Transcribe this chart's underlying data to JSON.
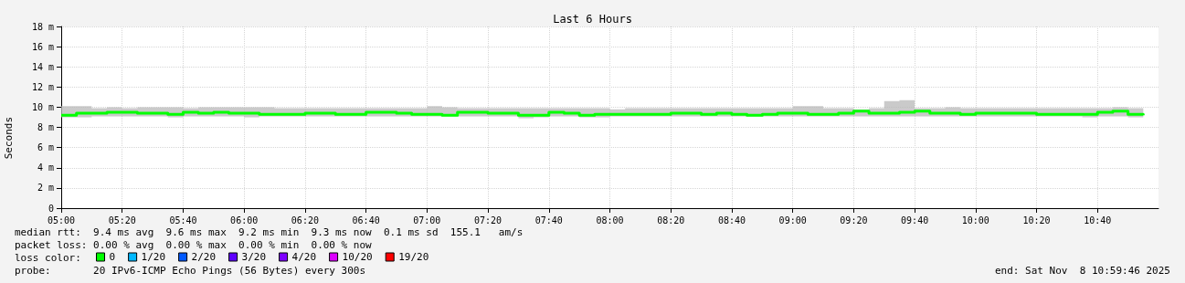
{
  "chart_data": {
    "type": "step",
    "title": "Last 6 Hours",
    "ylabel": "Seconds",
    "legend_title": "loss color:",
    "legend": "bottom",
    "grid": true,
    "marker": "none",
    "x": [
      "2025-11-08T05:00",
      "2025-11-08T05:05",
      "2025-11-08T05:10",
      "2025-11-08T05:15",
      "2025-11-08T05:20",
      "2025-11-08T05:25",
      "2025-11-08T05:30",
      "2025-11-08T05:35",
      "2025-11-08T05:40",
      "2025-11-08T05:45",
      "2025-11-08T05:50",
      "2025-11-08T05:55",
      "2025-11-08T06:00",
      "2025-11-08T06:05",
      "2025-11-08T06:10",
      "2025-11-08T06:15",
      "2025-11-08T06:20",
      "2025-11-08T06:25",
      "2025-11-08T06:30",
      "2025-11-08T06:35",
      "2025-11-08T06:40",
      "2025-11-08T06:45",
      "2025-11-08T06:50",
      "2025-11-08T06:55",
      "2025-11-08T07:00",
      "2025-11-08T07:05",
      "2025-11-08T07:10",
      "2025-11-08T07:15",
      "2025-11-08T07:20",
      "2025-11-08T07:25",
      "2025-11-08T07:30",
      "2025-11-08T07:35",
      "2025-11-08T07:40",
      "2025-11-08T07:45",
      "2025-11-08T07:50",
      "2025-11-08T07:55",
      "2025-11-08T08:00",
      "2025-11-08T08:05",
      "2025-11-08T08:10",
      "2025-11-08T08:15",
      "2025-11-08T08:20",
      "2025-11-08T08:25",
      "2025-11-08T08:30",
      "2025-11-08T08:35",
      "2025-11-08T08:40",
      "2025-11-08T08:45",
      "2025-11-08T08:50",
      "2025-11-08T08:55",
      "2025-11-08T09:00",
      "2025-11-08T09:05",
      "2025-11-08T09:10",
      "2025-11-08T09:15",
      "2025-11-08T09:20",
      "2025-11-08T09:25",
      "2025-11-08T09:30",
      "2025-11-08T09:35",
      "2025-11-08T09:40",
      "2025-11-08T09:45",
      "2025-11-08T09:50",
      "2025-11-08T09:55",
      "2025-11-08T10:00",
      "2025-11-08T10:05",
      "2025-11-08T10:10",
      "2025-11-08T10:15",
      "2025-11-08T10:20",
      "2025-11-08T10:25",
      "2025-11-08T10:30",
      "2025-11-08T10:35",
      "2025-11-08T10:40",
      "2025-11-08T10:45",
      "2025-11-08T10:50",
      "2025-11-08T10:55"
    ],
    "xlim": [
      "2025-11-08T05:00",
      "2025-11-08T11:00"
    ],
    "xticks": [
      {
        "value": "2025-11-08T05:00",
        "label": "05:00"
      },
      {
        "value": "2025-11-08T05:20",
        "label": "05:20"
      },
      {
        "value": "2025-11-08T05:40",
        "label": "05:40"
      },
      {
        "value": "2025-11-08T06:00",
        "label": "06:00"
      },
      {
        "value": "2025-11-08T06:20",
        "label": "06:20"
      },
      {
        "value": "2025-11-08T06:40",
        "label": "06:40"
      },
      {
        "value": "2025-11-08T07:00",
        "label": "07:00"
      },
      {
        "value": "2025-11-08T07:20",
        "label": "07:20"
      },
      {
        "value": "2025-11-08T07:40",
        "label": "07:40"
      },
      {
        "value": "2025-11-08T08:00",
        "label": "08:00"
      },
      {
        "value": "2025-11-08T08:20",
        "label": "08:20"
      },
      {
        "value": "2025-11-08T08:40",
        "label": "08:40"
      },
      {
        "value": "2025-11-08T09:00",
        "label": "09:00"
      },
      {
        "value": "2025-11-08T09:20",
        "label": "09:20"
      },
      {
        "value": "2025-11-08T09:40",
        "label": "09:40"
      },
      {
        "value": "2025-11-08T10:00",
        "label": "10:00"
      },
      {
        "value": "2025-11-08T10:20",
        "label": "10:20"
      },
      {
        "value": "2025-11-08T10:40",
        "label": "10:40"
      }
    ],
    "ylim": [
      0,
      18
    ],
    "yticks": [
      0,
      {
        "value": 2,
        "label": "2 m"
      },
      {
        "value": 4,
        "label": "4 m"
      },
      {
        "value": 6,
        "label": "6 m"
      },
      {
        "value": 8,
        "label": "8 m"
      },
      {
        "value": 10,
        "label": "10 m"
      },
      {
        "value": 12,
        "label": "12 m"
      },
      {
        "value": 14,
        "label": "14 m"
      },
      {
        "value": 16,
        "label": "16 m"
      },
      {
        "value": 18,
        "label": "18 m"
      }
    ],
    "series": [
      {
        "name": "0",
        "color": "#00ff00",
        "values": [
          9.2,
          9.4,
          9.4,
          9.5,
          9.5,
          9.4,
          9.4,
          9.3,
          9.5,
          9.4,
          9.5,
          9.4,
          9.4,
          9.3,
          9.3,
          9.3,
          9.4,
          9.4,
          9.3,
          9.3,
          9.5,
          9.5,
          9.4,
          9.3,
          9.3,
          9.2,
          9.5,
          9.5,
          9.4,
          9.4,
          9.2,
          9.2,
          9.5,
          9.4,
          9.2,
          9.3,
          9.3,
          9.3,
          9.3,
          9.3,
          9.4,
          9.4,
          9.3,
          9.4,
          9.3,
          9.2,
          9.3,
          9.4,
          9.4,
          9.3,
          9.3,
          9.4,
          9.6,
          9.4,
          9.4,
          9.5,
          9.6,
          9.4,
          9.4,
          9.3,
          9.4,
          9.4,
          9.4,
          9.4,
          9.3,
          9.3,
          9.3,
          9.3,
          9.5,
          9.6,
          9.3,
          9.2
        ],
        "lower": [
          9.0,
          9.0,
          9.1,
          9.1,
          9.1,
          9.1,
          9.1,
          9.0,
          9.1,
          9.1,
          9.1,
          9.1,
          9.0,
          9.1,
          9.1,
          9.1,
          9.1,
          9.1,
          9.1,
          9.1,
          9.1,
          9.1,
          9.1,
          9.1,
          9.1,
          9.1,
          9.1,
          9.1,
          9.1,
          9.1,
          8.9,
          9.0,
          9.1,
          9.1,
          9.0,
          9.0,
          9.1,
          9.1,
          9.1,
          9.1,
          9.1,
          9.1,
          9.1,
          9.1,
          9.1,
          9.1,
          9.1,
          9.1,
          9.1,
          9.1,
          9.1,
          9.1,
          9.1,
          9.1,
          9.1,
          9.1,
          9.1,
          9.1,
          9.1,
          9.1,
          9.1,
          9.1,
          9.1,
          9.1,
          9.1,
          9.1,
          9.1,
          9.0,
          9.1,
          9.1,
          9.0,
          9.0
        ],
        "upper": [
          10.1,
          10.1,
          9.9,
          10.0,
          9.9,
          10.0,
          10.0,
          10.0,
          9.9,
          10.0,
          10.0,
          10.0,
          10.0,
          10.0,
          9.9,
          9.9,
          9.9,
          9.9,
          9.9,
          9.9,
          9.9,
          9.9,
          9.9,
          9.9,
          10.1,
          10.0,
          9.9,
          9.9,
          9.9,
          9.9,
          9.9,
          9.9,
          9.9,
          9.9,
          9.9,
          9.9,
          9.8,
          9.9,
          9.9,
          9.9,
          9.9,
          9.9,
          9.9,
          9.9,
          9.9,
          9.9,
          9.9,
          9.9,
          10.1,
          10.1,
          9.9,
          9.9,
          9.8,
          9.9,
          10.6,
          10.7,
          9.9,
          9.9,
          10.0,
          9.9,
          9.9,
          9.9,
          9.9,
          9.9,
          9.9,
          9.9,
          9.9,
          9.9,
          9.9,
          10.0,
          9.9,
          9.9
        ]
      },
      {
        "name": "1/20",
        "color": "#00b8ff",
        "values": [
          null,
          null,
          null,
          null,
          null,
          null,
          null,
          null,
          null,
          null,
          null,
          null,
          null,
          null,
          null,
          null,
          null,
          null,
          null,
          null,
          null,
          null,
          null,
          null,
          null,
          null,
          null,
          null,
          null,
          null,
          null,
          null,
          null,
          null,
          null,
          null,
          null,
          null,
          null,
          null,
          null,
          null,
          null,
          null,
          null,
          null,
          null,
          null,
          null,
          null,
          null,
          null,
          null,
          null,
          null,
          null,
          null,
          null,
          null,
          null,
          null,
          null,
          null,
          null,
          null,
          null,
          null,
          null,
          null,
          null,
          null,
          null
        ]
      },
      {
        "name": "2/20",
        "color": "#0059ff",
        "values": [
          null,
          null,
          null,
          null,
          null,
          null,
          null,
          null,
          null,
          null,
          null,
          null,
          null,
          null,
          null,
          null,
          null,
          null,
          null,
          null,
          null,
          null,
          null,
          null,
          null,
          null,
          null,
          null,
          null,
          null,
          null,
          null,
          null,
          null,
          null,
          null,
          null,
          null,
          null,
          null,
          null,
          null,
          null,
          null,
          null,
          null,
          null,
          null,
          null,
          null,
          null,
          null,
          null,
          null,
          null,
          null,
          null,
          null,
          null,
          null,
          null,
          null,
          null,
          null,
          null,
          null,
          null,
          null,
          null,
          null,
          null,
          null
        ]
      },
      {
        "name": "3/20",
        "color": "#5e00ff",
        "values": [
          null,
          null,
          null,
          null,
          null,
          null,
          null,
          null,
          null,
          null,
          null,
          null,
          null,
          null,
          null,
          null,
          null,
          null,
          null,
          null,
          null,
          null,
          null,
          null,
          null,
          null,
          null,
          null,
          null,
          null,
          null,
          null,
          null,
          null,
          null,
          null,
          null,
          null,
          null,
          null,
          null,
          null,
          null,
          null,
          null,
          null,
          null,
          null,
          null,
          null,
          null,
          null,
          null,
          null,
          null,
          null,
          null,
          null,
          null,
          null,
          null,
          null,
          null,
          null,
          null,
          null,
          null,
          null,
          null,
          null,
          null,
          null
        ]
      },
      {
        "name": "4/20",
        "color": "#7e00ff",
        "values": [
          null,
          null,
          null,
          null,
          null,
          null,
          null,
          null,
          null,
          null,
          null,
          null,
          null,
          null,
          null,
          null,
          null,
          null,
          null,
          null,
          null,
          null,
          null,
          null,
          null,
          null,
          null,
          null,
          null,
          null,
          null,
          null,
          null,
          null,
          null,
          null,
          null,
          null,
          null,
          null,
          null,
          null,
          null,
          null,
          null,
          null,
          null,
          null,
          null,
          null,
          null,
          null,
          null,
          null,
          null,
          null,
          null,
          null,
          null,
          null,
          null,
          null,
          null,
          null,
          null,
          null,
          null,
          null,
          null,
          null,
          null,
          null
        ]
      },
      {
        "name": "10/20",
        "color": "#dd00ff",
        "values": [
          null,
          null,
          null,
          null,
          null,
          null,
          null,
          null,
          null,
          null,
          null,
          null,
          null,
          null,
          null,
          null,
          null,
          null,
          null,
          null,
          null,
          null,
          null,
          null,
          null,
          null,
          null,
          null,
          null,
          null,
          null,
          null,
          null,
          null,
          null,
          null,
          null,
          null,
          null,
          null,
          null,
          null,
          null,
          null,
          null,
          null,
          null,
          null,
          null,
          null,
          null,
          null,
          null,
          null,
          null,
          null,
          null,
          null,
          null,
          null,
          null,
          null,
          null,
          null,
          null,
          null,
          null,
          null,
          null,
          null,
          null,
          null
        ]
      },
      {
        "name": "19/20",
        "color": "#ff0000",
        "values": [
          null,
          null,
          null,
          null,
          null,
          null,
          null,
          null,
          null,
          null,
          null,
          null,
          null,
          null,
          null,
          null,
          null,
          null,
          null,
          null,
          null,
          null,
          null,
          null,
          null,
          null,
          null,
          null,
          null,
          null,
          null,
          null,
          null,
          null,
          null,
          null,
          null,
          null,
          null,
          null,
          null,
          null,
          null,
          null,
          null,
          null,
          null,
          null,
          null,
          null,
          null,
          null,
          null,
          null,
          null,
          null,
          null,
          null,
          null,
          null,
          null,
          null,
          null,
          null,
          null,
          null,
          null,
          null,
          null,
          null,
          null,
          null
        ]
      }
    ],
    "annotations": [
      "median rtt:  9.4 ms avg  9.6 ms max  9.2 ms min  9.3 ms now  0.1 ms sd  155.1   am/s",
      "packet loss: 0.00 % avg  0.00 % max  0.00 % min  0.00 % now",
      "probe:       20 IPv6-ICMP Echo Pings (56 Bytes) every 300s",
      "end: Sat Nov  8 10:59:46 2025"
    ]
  }
}
